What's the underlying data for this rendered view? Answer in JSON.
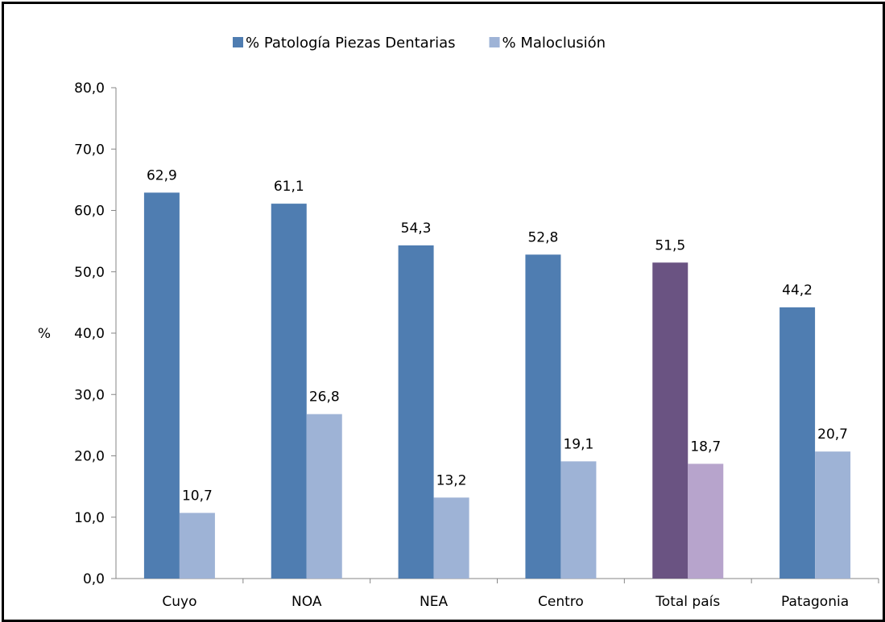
{
  "chart_data": {
    "type": "bar",
    "title": "",
    "xlabel": "",
    "ylabel": "%",
    "ylim": [
      0,
      80
    ],
    "yticks": [
      "0,0",
      "10,0",
      "20,0",
      "30,0",
      "40,0",
      "50,0",
      "60,0",
      "70,0",
      "80,0"
    ],
    "grid": false,
    "legend_position": "top",
    "categories": [
      "Cuyo",
      "NOA",
      "NEA",
      "Centro",
      "Total país",
      "Patagonia"
    ],
    "series": [
      {
        "name": "% Patología Piezas Dentarias",
        "values": [
          62.9,
          61.1,
          54.3,
          52.8,
          51.5,
          44.2
        ],
        "labels": [
          "62,9",
          "61,1",
          "54,3",
          "52,8",
          "51,5",
          "44,2"
        ],
        "color": "#4F7DB1",
        "highlight_color": "#6A5382"
      },
      {
        "name": "% Maloclusión",
        "values": [
          10.7,
          26.8,
          13.2,
          19.1,
          18.7,
          20.7
        ],
        "labels": [
          "10,7",
          "26,8",
          "13,2",
          "19,1",
          "18,7",
          "20,7"
        ],
        "color": "#9EB3D6",
        "highlight_color": "#B7A4CC"
      }
    ],
    "highlight_category": "Total país"
  }
}
